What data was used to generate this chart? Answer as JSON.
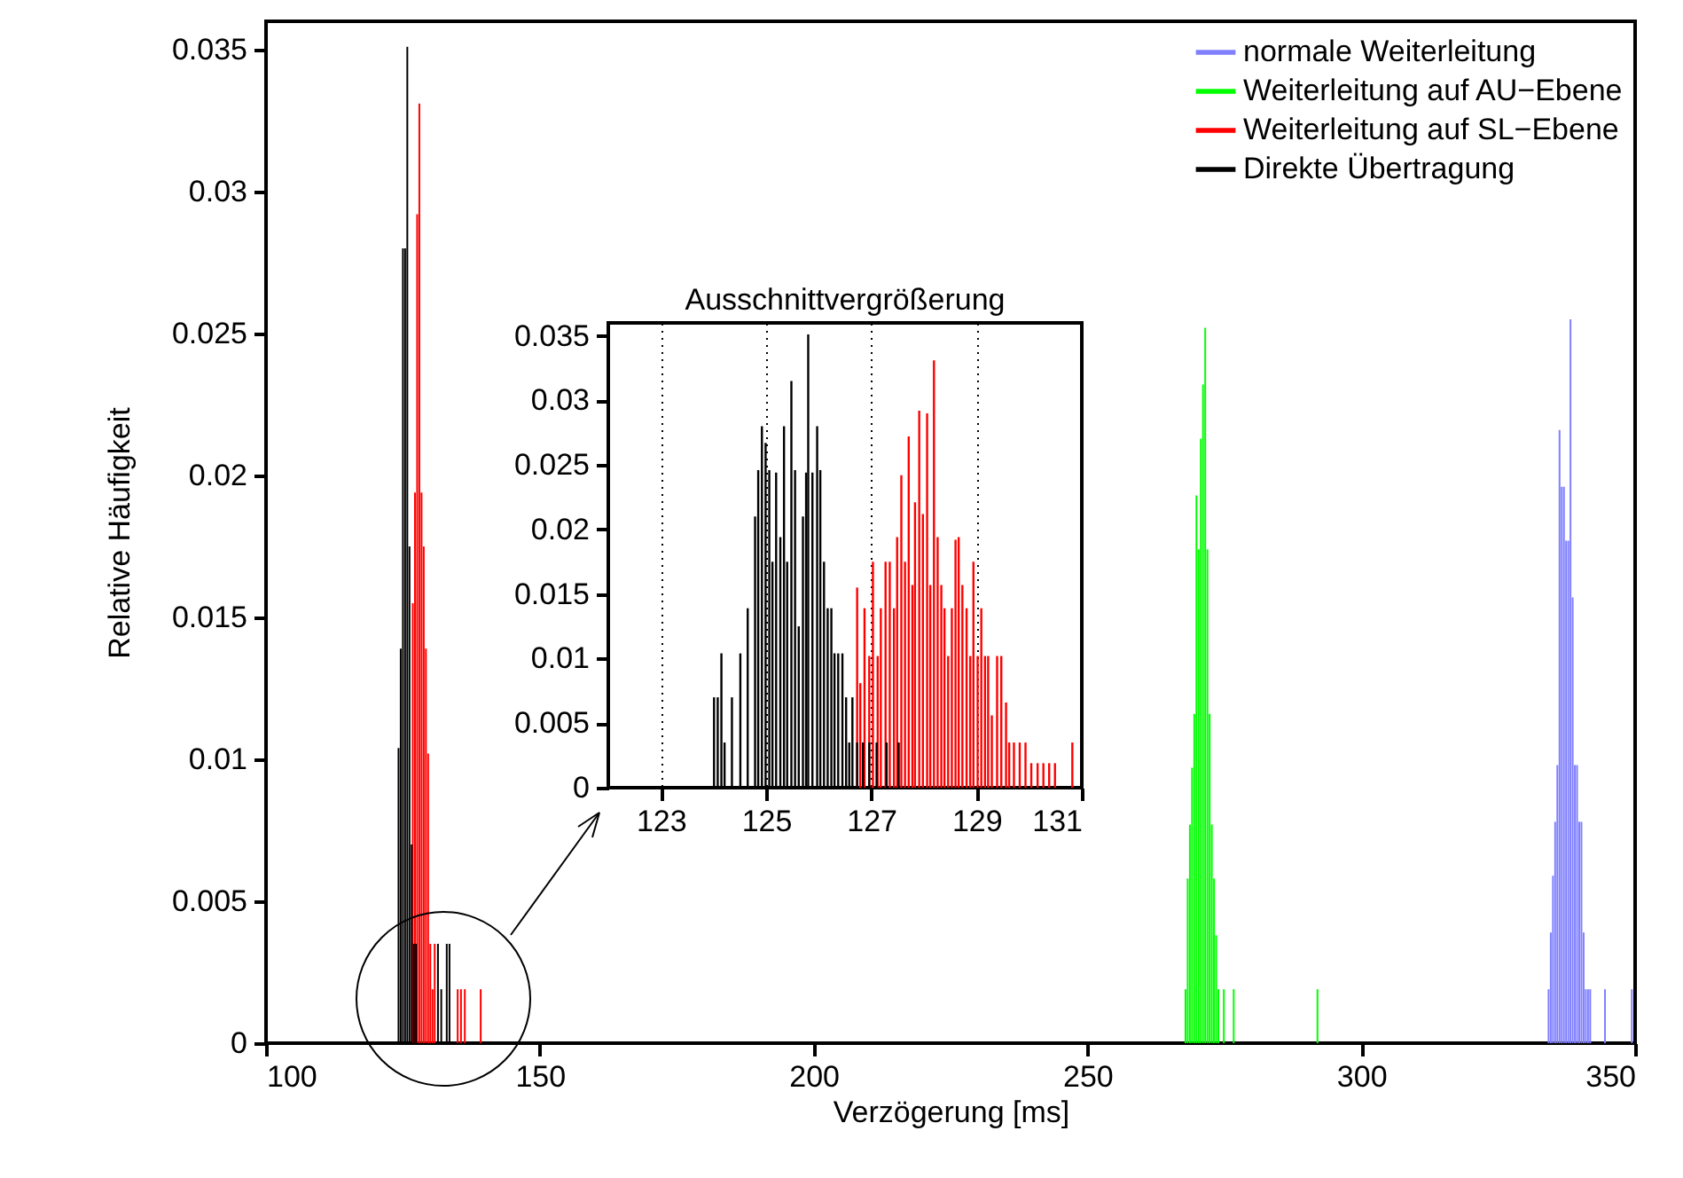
{
  "chart_data": [
    {
      "type": "bar",
      "xlabel": "Verzögerung [ms]",
      "ylabel": "Relative Häufigkeit",
      "xlim": [
        100,
        350
      ],
      "xticks": [
        100,
        150,
        200,
        250,
        300,
        350
      ],
      "ylim": [
        0,
        0.036
      ],
      "yticks": [
        0,
        0.005,
        0.01,
        0.015,
        0.02,
        0.025,
        0.03,
        0.035
      ],
      "grid": false,
      "legend": "top right",
      "series": [
        {
          "name": "normale Weiterleitung",
          "color": "#8080ff",
          "x": [
            334.2,
            334.6,
            335.0,
            335.4,
            335.8,
            336.2,
            336.6,
            337.0,
            337.4,
            337.8,
            338.2,
            338.6,
            339.0,
            339.4,
            339.8,
            340.2,
            340.6,
            341.0,
            341.4,
            341.8,
            344.5,
            349.4
          ],
          "values": [
            0.0019,
            0.0039,
            0.0059,
            0.0078,
            0.0098,
            0.0216,
            0.0196,
            0.0196,
            0.0177,
            0.0177,
            0.0255,
            0.0157,
            0.0098,
            0.0098,
            0.0078,
            0.0078,
            0.0039,
            0.0019,
            0.0019,
            0.0019,
            0.0019,
            0.0019
          ]
        },
        {
          "name": "Weiterleitung auf AU−Ebene",
          "color": "#00ff00",
          "x": [
            267.9,
            268.3,
            268.7,
            269.1,
            269.5,
            269.9,
            270.3,
            270.7,
            271.1,
            271.5,
            271.9,
            272.3,
            272.7,
            273.1,
            273.5,
            273.9,
            274.9,
            276.7,
            292.0
          ],
          "values": [
            0.0019,
            0.0058,
            0.0077,
            0.0097,
            0.0116,
            0.0193,
            0.0174,
            0.0213,
            0.0232,
            0.0252,
            0.0174,
            0.0116,
            0.0077,
            0.0058,
            0.0038,
            0.0019,
            0.0019,
            0.0019,
            0.0019
          ]
        },
        {
          "name": "Weiterleitung auf SL−Ebene",
          "color": "#ff0000",
          "x": [
            126.8,
            127.2,
            127.6,
            128.0,
            128.4,
            128.8,
            129.2,
            129.6,
            130.0,
            130.4,
            130.8,
            135.0,
            135.6,
            136.3,
            139.2
          ],
          "values": [
            0.0155,
            0.0194,
            0.0292,
            0.0331,
            0.0194,
            0.0175,
            0.0139,
            0.0102,
            0.0035,
            0.0019,
            0.0035,
            0.0019,
            0.0019,
            0.0019,
            0.0019
          ]
        },
        {
          "name": "Direkte Übertragung",
          "color": "#000000",
          "x": [
            124.2,
            124.6,
            125.0,
            125.4,
            125.8,
            126.2,
            126.6,
            127.0,
            127.4,
            131.4,
            132.0,
            133.0,
            133.5
          ],
          "values": [
            0.0104,
            0.0139,
            0.028,
            0.028,
            0.0351,
            0.0175,
            0.007,
            0.0035,
            0.0035,
            0.0035,
            0.0019,
            0.0035,
            0.0035
          ]
        }
      ]
    },
    {
      "type": "bar",
      "legend": false,
      "title": "Ausschnittvergrößerung",
      "xlim": [
        122,
        131
      ],
      "xticks": [
        123,
        125,
        127,
        129,
        131
      ],
      "ylim": [
        0,
        0.036
      ],
      "yticks": [
        0,
        0.005,
        0.01,
        0.015,
        0.02,
        0.025,
        0.03,
        0.035
      ],
      "grid": "x",
      "series": [
        {
          "color": "#ff0000",
          "x": [
            126.73,
            126.79,
            126.87,
            126.96,
            127.03,
            127.12,
            127.18,
            127.27,
            127.35,
            127.43,
            127.49,
            127.57,
            127.64,
            127.71,
            127.78,
            127.83,
            127.91,
            127.98,
            128.06,
            128.12,
            128.19,
            128.26,
            128.33,
            128.39,
            128.46,
            128.53,
            128.6,
            128.66,
            128.73,
            128.81,
            128.88,
            128.94,
            129.02,
            129.09,
            129.16,
            129.22,
            129.29,
            129.39,
            129.47,
            129.56,
            129.62,
            129.71,
            129.82,
            129.93,
            130.04,
            130.16,
            130.27,
            130.38,
            130.49,
            130.82
          ],
          "values": [
            0.0155,
            0.0081,
            0.0139,
            0.0102,
            0.0175,
            0.0102,
            0.0139,
            0.0175,
            0.0175,
            0.0139,
            0.0194,
            0.0242,
            0.0175,
            0.0272,
            0.0157,
            0.0221,
            0.0292,
            0.0212,
            0.029,
            0.0157,
            0.0331,
            0.0194,
            0.0157,
            0.0139,
            0.0102,
            0.0139,
            0.0192,
            0.0194,
            0.0157,
            0.0139,
            0.0102,
            0.0175,
            0.0102,
            0.0139,
            0.0102,
            0.0102,
            0.0056,
            0.0102,
            0.0102,
            0.0066,
            0.0035,
            0.0035,
            0.0035,
            0.0035,
            0.0019,
            0.0019,
            0.0019,
            0.0019,
            0.0019,
            0.0035
          ]
        },
        {
          "color": "#000000",
          "x": [
            124.01,
            124.08,
            124.15,
            124.21,
            124.35,
            124.51,
            124.65,
            124.79,
            124.85,
            124.92,
            124.99,
            125.06,
            125.12,
            125.19,
            125.27,
            125.34,
            125.4,
            125.48,
            125.55,
            125.62,
            125.7,
            125.76,
            125.8,
            125.88,
            125.97,
            126.03,
            126.1,
            126.17,
            126.24,
            126.3,
            126.37,
            126.45,
            126.52,
            126.58,
            126.64,
            126.73,
            126.84,
            126.96,
            127.1,
            127.29,
            127.52
          ],
          "values": [
            0.007,
            0.007,
            0.0104,
            0.0035,
            0.007,
            0.0104,
            0.0139,
            0.021,
            0.0246,
            0.028,
            0.0267,
            0.0246,
            0.0175,
            0.0244,
            0.0194,
            0.028,
            0.0175,
            0.0315,
            0.0246,
            0.0125,
            0.021,
            0.0244,
            0.0351,
            0.0244,
            0.028,
            0.0246,
            0.0175,
            0.0139,
            0.0139,
            0.0104,
            0.0104,
            0.0104,
            0.007,
            0.0035,
            0.007,
            0.0035,
            0.0035,
            0.0035,
            0.0035,
            0.0035,
            0.0035
          ]
        }
      ]
    }
  ]
}
